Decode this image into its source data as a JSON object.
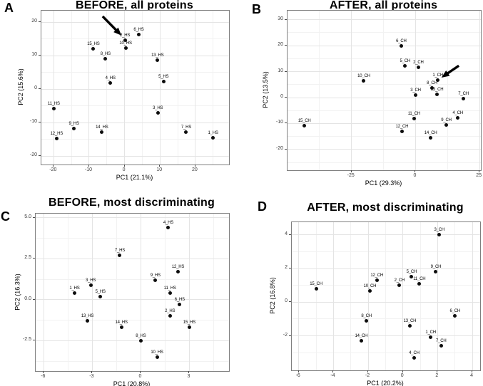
{
  "colors": {
    "point": "#0d0d0d",
    "grid_major": "#e4e4e4",
    "grid_minor": "#f2f2f2",
    "panel_border": "#7f7f7f",
    "text": "#000000"
  },
  "chart_data": [
    {
      "type": "scatter",
      "panel_letter": "A",
      "title": "BEFORE, all proteins",
      "xlabel": "PC1 (21.1%)",
      "ylabel": "PC2 (15.6%)",
      "xlim": [
        -23.5,
        29.5
      ],
      "ylim": [
        -22.5,
        23.5
      ],
      "xticks": [
        -20,
        -10,
        0,
        10,
        20
      ],
      "yticks": [
        -20,
        -10,
        0,
        10,
        20
      ],
      "grid": true,
      "legend": "none",
      "points": [
        {
          "label": "1_HS",
          "x": 25.0,
          "y": -14.5
        },
        {
          "label": "2_HS",
          "x": 0.1,
          "y": 14.6
        },
        {
          "label": "3_HS",
          "x": 9.4,
          "y": -7.1
        },
        {
          "label": "4_HS",
          "x": -4.0,
          "y": 1.8
        },
        {
          "label": "5_HS",
          "x": 11.0,
          "y": 2.3
        },
        {
          "label": "6_HS",
          "x": 4.0,
          "y": 16.3
        },
        {
          "label": "7_HS",
          "x": 17.4,
          "y": -12.8
        },
        {
          "label": "8_HS",
          "x": -5.4,
          "y": 9.1
        },
        {
          "label": "9_HS",
          "x": -14.3,
          "y": -11.7
        },
        {
          "label": "10_HS",
          "x": 0.3,
          "y": 12.4
        },
        {
          "label": "11_HS",
          "x": -20.0,
          "y": -5.7
        },
        {
          "label": "12_HS",
          "x": -19.2,
          "y": -14.7
        },
        {
          "label": "13_HS",
          "x": 9.3,
          "y": 8.8
        },
        {
          "label": "14_HS",
          "x": -6.4,
          "y": -12.9
        },
        {
          "label": "15_HS",
          "x": -8.8,
          "y": 12.1
        }
      ],
      "arrow": {
        "from": [
          -6.2,
          21.8
        ],
        "to": [
          -0.9,
          16.1
        ],
        "points_to": "2_HS"
      }
    },
    {
      "type": "scatter",
      "panel_letter": "B",
      "title": "AFTER, all proteins",
      "xlabel": "PC1 (29.3%)",
      "ylabel": "PC2 (13.5%)",
      "xlim": [
        -50,
        25.5
      ],
      "ylim": [
        -28,
        33.5
      ],
      "xticks": [
        -25,
        0,
        25
      ],
      "yticks": [
        -20,
        -10,
        0,
        10,
        20,
        30
      ],
      "grid": true,
      "legend": "none",
      "points": [
        {
          "label": "1_CH",
          "x": 8.7,
          "y": 6.8
        },
        {
          "label": "2_CH",
          "x": 1.1,
          "y": 11.8
        },
        {
          "label": "3_CH",
          "x": 0.0,
          "y": 1.0
        },
        {
          "label": "4_CH",
          "x": 16.5,
          "y": -7.7
        },
        {
          "label": "5_CH",
          "x": -4.1,
          "y": 12.2
        },
        {
          "label": "6_CH",
          "x": -5.6,
          "y": 19.8
        },
        {
          "label": "7_CH",
          "x": 18.7,
          "y": -0.4
        },
        {
          "label": "8_CH",
          "x": 6.4,
          "y": 3.8
        },
        {
          "label": "9_CH",
          "x": 12.0,
          "y": -10.7
        },
        {
          "label": "10_CH",
          "x": -20.2,
          "y": 6.5
        },
        {
          "label": "11_CH",
          "x": -0.6,
          "y": -8.2
        },
        {
          "label": "12_CH",
          "x": -5.3,
          "y": -13.1
        },
        {
          "label": "13_CH",
          "x": 8.4,
          "y": 1.3
        },
        {
          "label": "14_CH",
          "x": 5.9,
          "y": -15.4
        },
        {
          "label": "15_CH",
          "x": -43.4,
          "y": -10.8
        }
      ],
      "arrow": {
        "from": [
          16.9,
          12.3
        ],
        "to": [
          10.1,
          7.7
        ],
        "points_to": "1_CH"
      }
    },
    {
      "type": "scatter",
      "panel_letter": "C",
      "title": "BEFORE, most discriminating",
      "xlabel": "PC1 (20.8%)",
      "ylabel": "PC2 (16.3%)",
      "xlim": [
        -6.5,
        5.45
      ],
      "ylim": [
        -4.35,
        5.25
      ],
      "xticks": [
        -6,
        -3,
        0,
        3
      ],
      "yticks": [
        -2.5,
        0,
        2.5,
        5
      ],
      "ytick_labels": [
        "-2.5",
        "0.0",
        "2.5",
        "5.0"
      ],
      "grid": true,
      "legend": "none",
      "points": [
        {
          "label": "1_HS",
          "x": -4.1,
          "y": 0.4
        },
        {
          "label": "2_HS",
          "x": 1.8,
          "y": -1.0
        },
        {
          "label": "3_HS",
          "x": -3.1,
          "y": 0.9
        },
        {
          "label": "4_HS",
          "x": 1.7,
          "y": 4.4
        },
        {
          "label": "5_HS",
          "x": -2.5,
          "y": 0.2
        },
        {
          "label": "6_HS",
          "x": 2.4,
          "y": -0.3
        },
        {
          "label": "7_HS",
          "x": -1.3,
          "y": 2.7
        },
        {
          "label": "8_HS",
          "x": 0.0,
          "y": -2.5
        },
        {
          "label": "9_HS",
          "x": 0.9,
          "y": 1.2
        },
        {
          "label": "10_HS",
          "x": 1.0,
          "y": -3.5
        },
        {
          "label": "11_HS",
          "x": 1.8,
          "y": 0.4
        },
        {
          "label": "12_HS",
          "x": 2.3,
          "y": 1.7
        },
        {
          "label": "13_HS",
          "x": -3.3,
          "y": -1.3
        },
        {
          "label": "14_HS",
          "x": -1.2,
          "y": -1.7
        },
        {
          "label": "15_HS",
          "x": 3.0,
          "y": -1.7
        }
      ]
    },
    {
      "type": "scatter",
      "panel_letter": "D",
      "title": "AFTER, most discriminating",
      "xlabel": "PC1 (20.2%)",
      "ylabel": "PC2 (16.8%)",
      "xlim": [
        -6.4,
        4.45
      ],
      "ylim": [
        -4.05,
        4.75
      ],
      "xticks": [
        -6,
        -4,
        -2,
        0,
        2,
        4
      ],
      "yticks": [
        -2,
        0,
        2,
        4
      ],
      "grid": true,
      "legend": "none",
      "points": [
        {
          "label": "1_CH",
          "x": 1.6,
          "y": -2.1
        },
        {
          "label": "2_CH",
          "x": -0.2,
          "y": 1.0
        },
        {
          "label": "3_CH",
          "x": 2.1,
          "y": 4.0
        },
        {
          "label": "4_CH",
          "x": 0.65,
          "y": -3.3
        },
        {
          "label": "5_CH",
          "x": 0.5,
          "y": 1.5
        },
        {
          "label": "6_CH",
          "x": 3.0,
          "y": -0.8
        },
        {
          "label": "7_CH",
          "x": 2.2,
          "y": -2.6
        },
        {
          "label": "8_CH",
          "x": -2.1,
          "y": -1.1
        },
        {
          "label": "9_CH",
          "x": 1.9,
          "y": 1.8
        },
        {
          "label": "10_CH",
          "x": -1.9,
          "y": 0.65
        },
        {
          "label": "11_CH",
          "x": 0.95,
          "y": 1.1
        },
        {
          "label": "12_CH",
          "x": -1.5,
          "y": 1.3
        },
        {
          "label": "13_CH",
          "x": 0.4,
          "y": -1.4
        },
        {
          "label": "14_CH",
          "x": -2.4,
          "y": -2.3
        },
        {
          "label": "15_CH",
          "x": -5.0,
          "y": 0.8
        }
      ]
    }
  ]
}
